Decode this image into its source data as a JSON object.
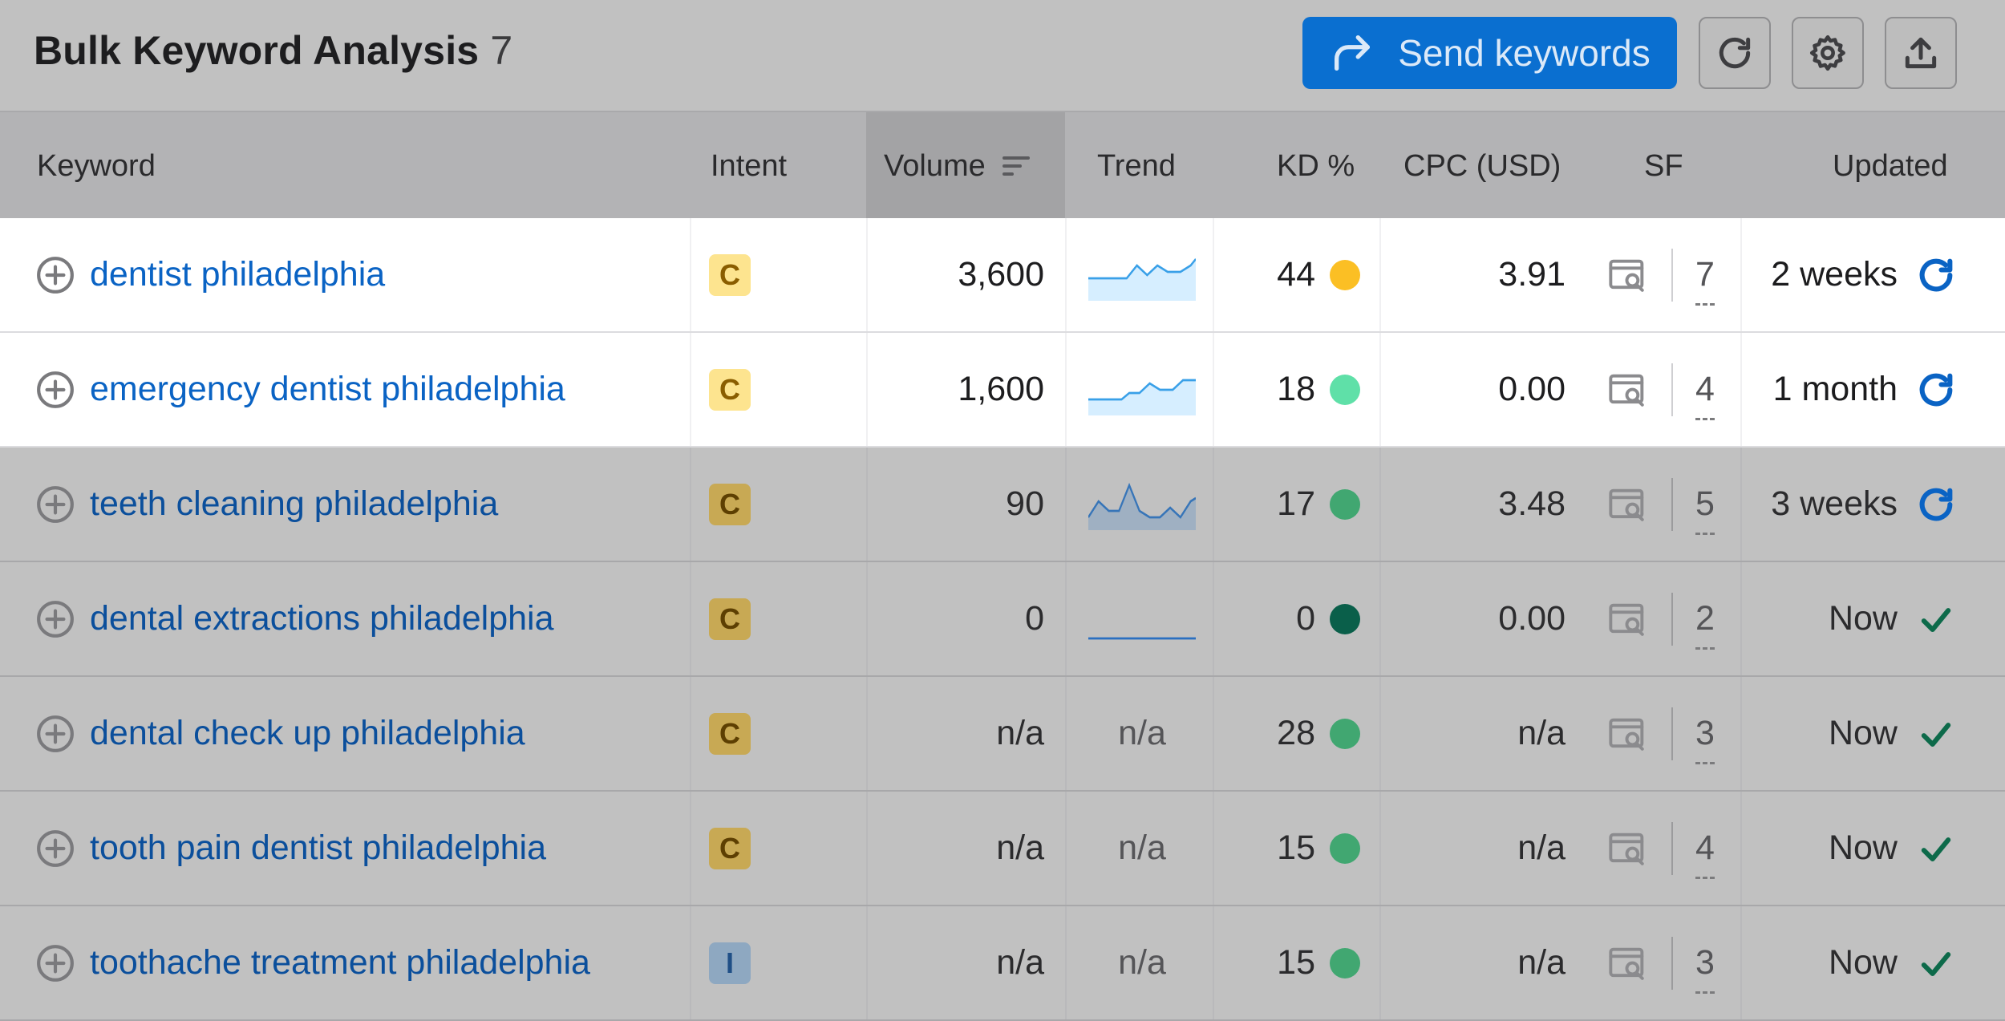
{
  "header": {
    "title": "Bulk Keyword Analysis",
    "count": "7",
    "send_label": "Send keywords"
  },
  "columns": {
    "keyword": "Keyword",
    "intent": "Intent",
    "volume": "Volume",
    "trend": "Trend",
    "kd": "KD %",
    "cpc": "CPC (USD)",
    "sf": "SF",
    "updated": "Updated"
  },
  "rows": [
    {
      "keyword": "dentist philadelphia",
      "intent": "C",
      "volume": "3,600",
      "trend": "chart",
      "kd": "44",
      "kd_color": "#fbbf24",
      "cpc": "3.91",
      "sf": "7",
      "updated": "2 weeks",
      "status": "refresh"
    },
    {
      "keyword": "emergency dentist philadelphia",
      "intent": "C",
      "volume": "1,600",
      "trend": "chart",
      "kd": "18",
      "kd_color": "#5fe0a8",
      "cpc": "0.00",
      "sf": "4",
      "updated": "1 month",
      "status": "refresh"
    },
    {
      "keyword": "teeth cleaning philadelphia",
      "intent": "C",
      "volume": "90",
      "trend": "chart",
      "kd": "17",
      "kd_color": "#41a771",
      "cpc": "3.48",
      "sf": "5",
      "updated": "3 weeks",
      "status": "refresh"
    },
    {
      "keyword": "dental extractions philadelphia",
      "intent": "C",
      "volume": "0",
      "trend": "flat",
      "kd": "0",
      "kd_color": "#0a5f4a",
      "cpc": "0.00",
      "sf": "2",
      "updated": "Now",
      "status": "done"
    },
    {
      "keyword": "dental check up philadelphia",
      "intent": "C",
      "volume": "n/a",
      "trend": "n/a",
      "kd": "28",
      "kd_color": "#41a771",
      "cpc": "n/a",
      "sf": "3",
      "updated": "Now",
      "status": "done"
    },
    {
      "keyword": "tooth pain dentist philadelphia",
      "intent": "C",
      "volume": "n/a",
      "trend": "n/a",
      "kd": "15",
      "kd_color": "#41a771",
      "cpc": "n/a",
      "sf": "4",
      "updated": "Now",
      "status": "done"
    },
    {
      "keyword": "toothache treatment philadelphia",
      "intent": "I",
      "volume": "n/a",
      "trend": "n/a",
      "kd": "15",
      "kd_color": "#41a771",
      "cpc": "n/a",
      "sf": "3",
      "updated": "Now",
      "status": "done"
    }
  ],
  "colors": {
    "accent": "#0a6fd0",
    "link": "#0a63c4",
    "check": "#0d6a4a"
  }
}
